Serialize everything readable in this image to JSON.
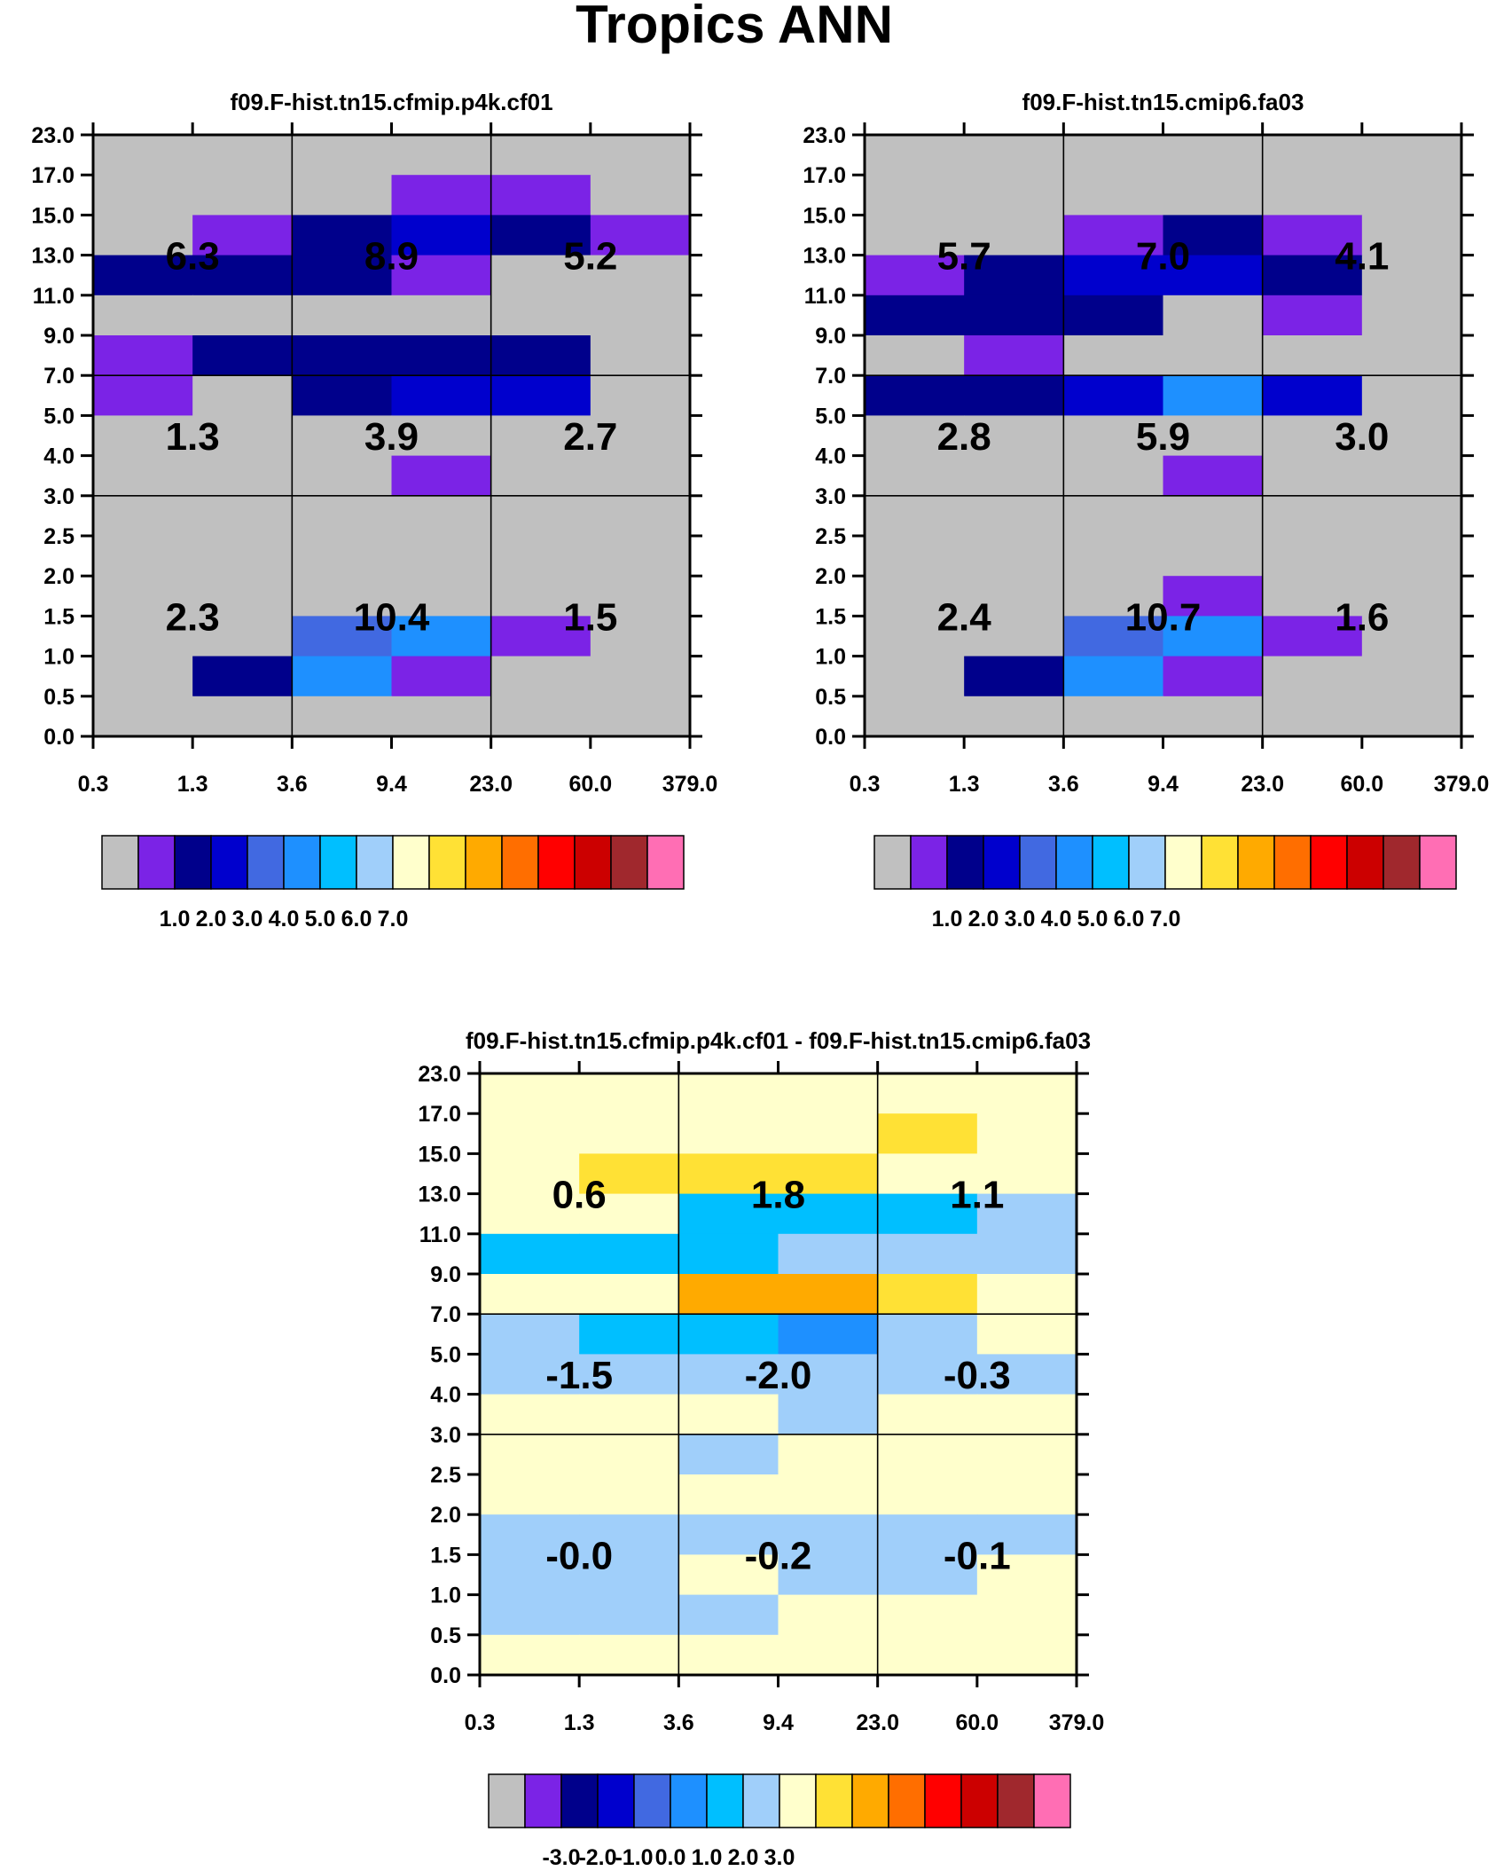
{
  "title": "Tropics ANN",
  "colors": {
    "palette": [
      "#c0c0c0",
      "#7b23e6",
      "#00008b",
      "#0000cd",
      "#4169e1",
      "#1e90ff",
      "#00bfff",
      "#a0cffa",
      "#ffffcc",
      "#ffe135",
      "#ffaa00",
      "#ff6e00",
      "#ff0000",
      "#cc0000",
      "#a0282d",
      "#ff6eb4"
    ],
    "background_code": 0
  },
  "chart_data": [
    {
      "type": "heatmap",
      "title": "f09.F-hist.tn15.cfmip.p4k.cf01",
      "x_tick_labels": [
        "0.3",
        "1.3",
        "3.6",
        "9.4",
        "23.0",
        "60.0",
        "379.0"
      ],
      "y_tick_labels": [
        "0.0",
        "0.5",
        "1.0",
        "1.5",
        "2.0",
        "2.5",
        "3.0",
        "4.0",
        "5.0",
        "7.0",
        "9.0",
        "11.0",
        "13.0",
        "15.0",
        "17.0",
        "23.0"
      ],
      "cell_color_index_rows_top_to_bottom": [
        [
          0,
          0,
          0,
          0,
          0,
          0
        ],
        [
          0,
          0,
          0,
          1,
          1,
          0
        ],
        [
          0,
          1,
          2,
          3,
          2,
          1
        ],
        [
          2,
          2,
          2,
          1,
          0,
          0
        ],
        [
          0,
          0,
          0,
          0,
          0,
          0
        ],
        [
          1,
          2,
          2,
          2,
          2,
          0
        ],
        [
          1,
          0,
          2,
          3,
          3,
          0
        ],
        [
          0,
          0,
          0,
          0,
          0,
          0
        ],
        [
          0,
          0,
          0,
          1,
          0,
          0
        ],
        [
          0,
          0,
          0,
          0,
          0,
          0
        ],
        [
          0,
          0,
          0,
          0,
          0,
          0
        ],
        [
          0,
          0,
          0,
          0,
          0,
          0
        ],
        [
          0,
          0,
          4,
          5,
          1,
          0
        ],
        [
          0,
          2,
          5,
          1,
          0,
          0
        ],
        [
          0,
          0,
          0,
          0,
          0,
          0
        ]
      ],
      "group_labels": [
        [
          "6.3",
          "8.9",
          "5.2"
        ],
        [
          "1.3",
          "3.9",
          "2.7"
        ],
        [
          "2.3",
          "10.4",
          "1.5"
        ]
      ],
      "colorbar_codes": [
        0,
        1,
        2,
        3,
        4,
        5,
        6,
        7,
        8,
        9,
        10,
        11,
        12,
        13,
        14,
        15
      ],
      "colorbar_labels": [
        "1.0",
        "2.0",
        "3.0",
        "4.0",
        "5.0",
        "6.0",
        "7.0"
      ]
    },
    {
      "type": "heatmap",
      "title": "f09.F-hist.tn15.cmip6.fa03",
      "x_tick_labels": [
        "0.3",
        "1.3",
        "3.6",
        "9.4",
        "23.0",
        "60.0",
        "379.0"
      ],
      "y_tick_labels": [
        "0.0",
        "0.5",
        "1.0",
        "1.5",
        "2.0",
        "2.5",
        "3.0",
        "4.0",
        "5.0",
        "7.0",
        "9.0",
        "11.0",
        "13.0",
        "15.0",
        "17.0",
        "23.0"
      ],
      "cell_color_index_rows_top_to_bottom": [
        [
          0,
          0,
          0,
          0,
          0,
          0
        ],
        [
          0,
          0,
          0,
          0,
          0,
          0
        ],
        [
          0,
          0,
          1,
          2,
          1,
          0
        ],
        [
          1,
          2,
          3,
          3,
          2,
          0
        ],
        [
          2,
          2,
          2,
          0,
          1,
          0
        ],
        [
          0,
          1,
          0,
          0,
          0,
          0
        ],
        [
          2,
          2,
          3,
          5,
          3,
          0
        ],
        [
          0,
          0,
          0,
          0,
          0,
          0
        ],
        [
          0,
          0,
          0,
          1,
          0,
          0
        ],
        [
          0,
          0,
          0,
          0,
          0,
          0
        ],
        [
          0,
          0,
          0,
          0,
          0,
          0
        ],
        [
          0,
          0,
          0,
          1,
          0,
          0
        ],
        [
          0,
          0,
          4,
          5,
          1,
          0
        ],
        [
          0,
          2,
          5,
          1,
          0,
          0
        ],
        [
          0,
          0,
          0,
          0,
          0,
          0
        ]
      ],
      "group_labels": [
        [
          "5.7",
          "7.0",
          "4.1"
        ],
        [
          "2.8",
          "5.9",
          "3.0"
        ],
        [
          "2.4",
          "10.7",
          "1.6"
        ]
      ],
      "colorbar_codes": [
        0,
        1,
        2,
        3,
        4,
        5,
        6,
        7,
        8,
        9,
        10,
        11,
        12,
        13,
        14,
        15
      ],
      "colorbar_labels": [
        "1.0",
        "2.0",
        "3.0",
        "4.0",
        "5.0",
        "6.0",
        "7.0"
      ]
    },
    {
      "type": "heatmap",
      "title": "f09.F-hist.tn15.cfmip.p4k.cf01 - f09.F-hist.tn15.cmip6.fa03",
      "x_tick_labels": [
        "0.3",
        "1.3",
        "3.6",
        "9.4",
        "23.0",
        "60.0",
        "379.0"
      ],
      "y_tick_labels": [
        "0.0",
        "0.5",
        "1.0",
        "1.5",
        "2.0",
        "2.5",
        "3.0",
        "4.0",
        "5.0",
        "7.0",
        "9.0",
        "11.0",
        "13.0",
        "15.0",
        "17.0",
        "23.0"
      ],
      "cell_color_index_rows_top_to_bottom": [
        [
          8,
          8,
          8,
          8,
          8,
          8
        ],
        [
          8,
          8,
          8,
          8,
          9,
          8
        ],
        [
          8,
          9,
          9,
          9,
          8,
          8
        ],
        [
          8,
          8,
          6,
          6,
          6,
          7
        ],
        [
          6,
          6,
          6,
          7,
          7,
          7
        ],
        [
          8,
          8,
          10,
          10,
          9,
          8
        ],
        [
          7,
          6,
          6,
          5,
          7,
          8
        ],
        [
          7,
          7,
          7,
          7,
          7,
          7
        ],
        [
          8,
          8,
          8,
          7,
          8,
          8
        ],
        [
          8,
          8,
          7,
          8,
          8,
          8
        ],
        [
          8,
          8,
          8,
          8,
          8,
          8
        ],
        [
          7,
          7,
          7,
          7,
          7,
          7
        ],
        [
          7,
          7,
          8,
          7,
          7,
          8
        ],
        [
          7,
          7,
          7,
          8,
          8,
          8
        ],
        [
          8,
          8,
          8,
          8,
          8,
          8
        ]
      ],
      "group_labels": [
        [
          "0.6",
          "1.8",
          "1.1"
        ],
        [
          "-1.5",
          "-2.0",
          "-0.3"
        ],
        [
          "-0.0",
          "-0.2",
          "-0.1"
        ]
      ],
      "colorbar_codes": [
        0,
        1,
        2,
        3,
        4,
        5,
        6,
        7,
        8,
        9,
        10,
        11,
        12,
        13,
        14,
        15
      ],
      "colorbar_labels": [
        "-3.0",
        "-2.0",
        "-1.0",
        "0.0",
        "1.0",
        "2.0",
        "3.0"
      ]
    }
  ]
}
